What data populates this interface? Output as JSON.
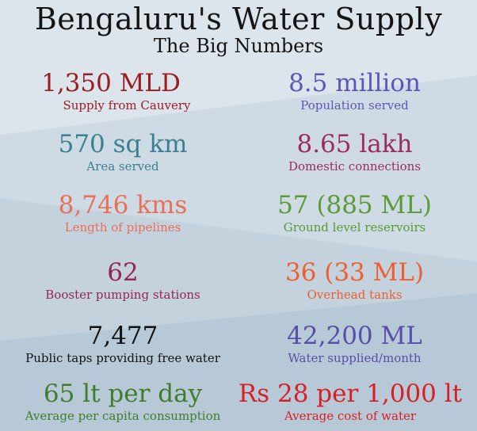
{
  "title": "Bengaluru's Water Supply",
  "subtitle": "The Big Numbers",
  "stats": [
    {
      "value": "1,350 MLD",
      "label": "Supply from Cauvery",
      "color": "#9b1d24"
    },
    {
      "value": "8.5 million",
      "label": "Population served",
      "color": "#5d56b8"
    },
    {
      "value": "570 sq km",
      "label": "Area served",
      "color": "#3b7f92"
    },
    {
      "value": "8.65 lakh",
      "label": "Domestic connections",
      "color": "#9c2a63"
    },
    {
      "value": "8,746 kms",
      "label": "Length of pipelines",
      "color": "#ea6f57"
    },
    {
      "value": "57 (885 ML)",
      "label": "Ground level reservoirs",
      "color": "#5a9a37"
    },
    {
      "value": "62",
      "label": "Booster pumping stations",
      "color": "#94245b"
    },
    {
      "value": "36 (33 ML)",
      "label": "Overhead tanks",
      "color": "#ef5e2f"
    },
    {
      "value": "7,477",
      "label": "Public taps providing free water",
      "color": "#111111"
    },
    {
      "value": "42,200 ML",
      "label": "Water supplied/month",
      "color": "#574ea8"
    },
    {
      "value": "65 lt per day",
      "label": "Average per capita consumption",
      "color": "#3f7d2c"
    },
    {
      "value": "Rs 28 per 1,000 lt",
      "label": "Average cost of water",
      "color": "#d81f26"
    }
  ]
}
